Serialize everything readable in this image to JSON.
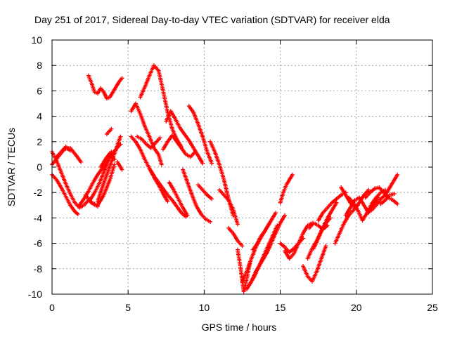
{
  "chart_data": {
    "type": "scatter",
    "title": "Day 251 of 2017, Sidereal Day-to-day VTEC variation (SDTVAR) for receiver elda",
    "xlabel": "GPS time / hours",
    "ylabel": "SDTVAR / TECUs",
    "xlim": [
      0,
      25
    ],
    "ylim": [
      -10,
      10
    ],
    "xticks": [
      0,
      5,
      10,
      15,
      20,
      25
    ],
    "yticks": [
      -10,
      -8,
      -6,
      -4,
      -2,
      0,
      2,
      4,
      6,
      8,
      10
    ],
    "grid": true,
    "marker": "+",
    "color": "#ff0000",
    "tracks": [
      {
        "x": [
          0.0,
          0.3,
          0.6,
          0.9,
          1.2,
          1.5,
          1.8,
          2.1,
          2.4,
          2.7,
          3.0
        ],
        "y": [
          1.2,
          0.5,
          -0.4,
          -1.3,
          -2.1,
          -2.8,
          -3.2,
          -3.0,
          -2.6,
          -2.9,
          -3.1
        ]
      },
      {
        "x": [
          0.0,
          0.4,
          0.8,
          1.2,
          1.6,
          1.9
        ],
        "y": [
          0.2,
          0.8,
          1.4,
          1.5,
          0.9,
          0.4
        ]
      },
      {
        "x": [
          0.0,
          0.3,
          0.6,
          0.9,
          1.2,
          1.5,
          1.7
        ],
        "y": [
          -0.6,
          -1.0,
          -1.6,
          -2.3,
          -3.0,
          -3.5,
          -3.7
        ]
      },
      {
        "x": [
          0.3,
          0.6,
          0.9,
          1.2
        ],
        "y": [
          0.8,
          1.2,
          1.6,
          1.3
        ]
      },
      {
        "x": [
          1.8,
          2.1,
          2.4,
          2.7,
          3.0,
          3.3,
          3.6,
          3.9,
          4.2,
          4.5
        ],
        "y": [
          -3.0,
          -2.5,
          -1.9,
          -1.2,
          -0.6,
          -0.1,
          0.4,
          1.0,
          1.4,
          1.8
        ]
      },
      {
        "x": [
          2.2,
          2.6,
          3.0,
          3.4,
          3.8,
          4.1
        ],
        "y": [
          -2.2,
          -2.8,
          -3.0,
          -2.2,
          -1.0,
          0.2
        ]
      },
      {
        "x": [
          2.5,
          2.8,
          3.1,
          3.4,
          3.7,
          3.9
        ],
        "y": [
          -2.6,
          -2.0,
          -1.3,
          -0.4,
          0.5,
          1.2
        ]
      },
      {
        "x": [
          3.0,
          3.3,
          3.6,
          3.9,
          4.2,
          4.5
        ],
        "y": [
          -2.7,
          -1.6,
          -0.6,
          0.4,
          1.4,
          2.4
        ]
      },
      {
        "x": [
          3.2,
          3.5,
          3.8,
          4.1
        ],
        "y": [
          0.0,
          0.6,
          1.1,
          0.6
        ]
      },
      {
        "x": [
          3.6,
          3.9
        ],
        "y": [
          2.6,
          3.0
        ]
      },
      {
        "x": [
          4.3,
          4.6
        ],
        "y": [
          0.4,
          -0.2
        ]
      },
      {
        "x": [
          2.4,
          2.6,
          2.8,
          3.0,
          3.2,
          3.4,
          3.6,
          3.8,
          4.0,
          4.2,
          4.4,
          4.6
        ],
        "y": [
          7.2,
          6.6,
          5.9,
          5.8,
          6.2,
          5.9,
          5.4,
          5.5,
          5.9,
          6.3,
          6.7,
          7.0
        ]
      },
      {
        "x": [
          5.2,
          5.5,
          5.8,
          6.1,
          6.4,
          6.7,
          7.0,
          7.2
        ],
        "y": [
          4.4,
          5.0,
          4.2,
          3.2,
          2.4,
          1.5,
          1.0,
          0.2
        ]
      },
      {
        "x": [
          5.2,
          5.5,
          5.8,
          6.1,
          6.4,
          6.7,
          7.0,
          7.3,
          7.6
        ],
        "y": [
          2.4,
          2.0,
          1.4,
          0.6,
          -0.1,
          -0.8,
          -1.4,
          -2.1,
          -2.7
        ]
      },
      {
        "x": [
          5.6,
          5.9,
          6.2,
          6.5,
          6.8,
          7.1
        ],
        "y": [
          2.4,
          2.2,
          1.8,
          1.5,
          1.9,
          2.3
        ]
      },
      {
        "x": [
          5.8,
          6.1,
          6.4,
          6.7,
          7.0,
          7.3,
          7.6,
          7.9,
          8.2,
          8.5
        ],
        "y": [
          5.5,
          6.3,
          7.2,
          8.0,
          7.6,
          6.0,
          4.3,
          3.0,
          2.2,
          1.6
        ]
      },
      {
        "x": [
          6.4,
          6.7,
          7.0,
          7.3,
          7.6,
          7.9,
          8.2,
          8.5,
          8.8
        ],
        "y": [
          -0.1,
          -0.7,
          -1.2,
          -1.7,
          -2.2,
          -2.6,
          -3.1,
          -3.6,
          -3.9
        ]
      },
      {
        "x": [
          7.3,
          7.6,
          7.9,
          8.2,
          8.5,
          8.8,
          9.1,
          9.4
        ],
        "y": [
          1.4,
          2.0,
          2.5,
          2.0,
          1.5,
          1.0,
          0.8,
          1.2
        ]
      },
      {
        "x": [
          7.7,
          8.0,
          8.3,
          8.6,
          8.9
        ],
        "y": [
          -1.2,
          -1.8,
          -2.5,
          -3.2,
          -3.8
        ]
      },
      {
        "x": [
          7.5,
          7.8,
          8.1,
          8.4,
          8.7,
          9.0,
          9.3,
          9.6,
          9.9
        ],
        "y": [
          3.6,
          4.4,
          3.8,
          3.1,
          2.6,
          2.1,
          1.5,
          0.9,
          0.3
        ]
      },
      {
        "x": [
          8.6,
          8.9,
          9.2,
          9.5,
          9.8,
          10.1,
          10.4
        ],
        "y": [
          -0.2,
          -1.2,
          -2.2,
          -3.1,
          -3.7,
          -4.1,
          -4.3
        ]
      },
      {
        "x": [
          9.0,
          9.3,
          9.6,
          9.9,
          10.2,
          10.5
        ],
        "y": [
          4.8,
          4.3,
          3.4,
          2.4,
          1.2,
          0.3
        ]
      },
      {
        "x": [
          9.6,
          9.9,
          10.2,
          10.5
        ],
        "y": [
          -1.4,
          -1.8,
          -2.2,
          -2.5
        ]
      },
      {
        "x": [
          10.4,
          10.7,
          11.0,
          11.3,
          11.6,
          11.9
        ],
        "y": [
          2.0,
          1.2,
          0.2,
          -1.0,
          -2.5,
          -3.8
        ]
      },
      {
        "x": [
          11.0,
          11.3,
          11.6,
          11.9,
          12.2
        ],
        "y": [
          -1.8,
          -2.2,
          -2.6,
          -3.3,
          -4.5
        ]
      },
      {
        "x": [
          11.6,
          11.9,
          12.2,
          12.5
        ],
        "y": [
          -4.8,
          -5.2,
          -5.8,
          -6.2
        ]
      },
      {
        "x": [
          12.2,
          12.4,
          12.6,
          12.8,
          13.0
        ],
        "y": [
          -6.5,
          -8.0,
          -9.8,
          -8.8,
          -7.6
        ]
      },
      {
        "x": [
          12.5,
          12.8,
          13.1,
          13.4,
          13.7,
          14.0,
          14.3
        ],
        "y": [
          -9.0,
          -8.2,
          -7.2,
          -6.3,
          -5.5,
          -5.0,
          -4.4
        ]
      },
      {
        "x": [
          12.8,
          13.1,
          13.4,
          13.7,
          14.0,
          14.3
        ],
        "y": [
          -9.6,
          -9.0,
          -8.2,
          -7.6,
          -7.0,
          -6.2
        ]
      },
      {
        "x": [
          13.0,
          13.3,
          13.6,
          13.9,
          14.2,
          14.5,
          14.8
        ],
        "y": [
          -9.2,
          -8.6,
          -7.8,
          -7.0,
          -6.2,
          -5.4,
          -4.6
        ]
      },
      {
        "x": [
          13.2,
          13.5,
          13.8,
          14.1,
          14.4,
          14.7
        ],
        "y": [
          -6.5,
          -6.0,
          -5.4,
          -4.8,
          -4.2,
          -3.6
        ]
      },
      {
        "x": [
          14.1,
          14.4,
          14.7,
          15.0,
          15.3
        ],
        "y": [
          -6.8,
          -6.0,
          -5.2,
          -4.4,
          -3.8
        ]
      },
      {
        "x": [
          15.0,
          15.2,
          15.4,
          15.6,
          15.8
        ],
        "y": [
          -2.8,
          -2.0,
          -1.4,
          -1.0,
          -0.6
        ]
      },
      {
        "x": [
          15.0,
          15.3,
          15.6,
          15.9,
          16.2,
          16.5
        ],
        "y": [
          -6.0,
          -6.3,
          -6.7,
          -6.4,
          -6.0,
          -5.6
        ]
      },
      {
        "x": [
          15.3,
          15.6,
          15.9,
          16.2,
          16.5,
          16.8,
          17.1
        ],
        "y": [
          -6.6,
          -7.2,
          -6.8,
          -6.0,
          -5.2,
          -4.6,
          -4.4
        ]
      },
      {
        "x": [
          16.5,
          16.8,
          17.1,
          17.4,
          17.7,
          18.0
        ],
        "y": [
          -7.8,
          -8.6,
          -9.0,
          -8.2,
          -7.2,
          -6.2
        ]
      },
      {
        "x": [
          16.8,
          17.1,
          17.4,
          17.7,
          18.0,
          18.3
        ],
        "y": [
          -7.2,
          -6.4,
          -5.8,
          -5.0,
          -4.4,
          -4.0
        ]
      },
      {
        "x": [
          16.9,
          17.2,
          17.5,
          17.8,
          18.1
        ],
        "y": [
          -4.8,
          -4.4,
          -4.6,
          -4.9,
          -4.6
        ]
      },
      {
        "x": [
          17.2,
          17.5,
          17.8,
          18.1,
          18.4,
          18.7
        ],
        "y": [
          -6.4,
          -5.6,
          -4.8,
          -4.0,
          -3.4,
          -2.8
        ]
      },
      {
        "x": [
          17.5,
          17.8,
          18.1,
          18.4,
          18.7,
          19.0,
          19.3
        ],
        "y": [
          -4.2,
          -3.6,
          -3.2,
          -2.8,
          -2.5,
          -2.2,
          -2.0
        ]
      },
      {
        "x": [
          18.6,
          18.9,
          19.2,
          19.5,
          19.8,
          20.1
        ],
        "y": [
          -6.0,
          -5.2,
          -4.4,
          -3.8,
          -3.4,
          -3.0
        ]
      },
      {
        "x": [
          19.0,
          19.3,
          19.6,
          19.9,
          20.2,
          20.5,
          20.8
        ],
        "y": [
          -1.6,
          -2.2,
          -2.8,
          -3.2,
          -2.8,
          -2.2,
          -1.8
        ]
      },
      {
        "x": [
          19.3,
          19.6,
          19.9,
          20.2,
          20.5,
          20.8,
          21.1,
          21.4
        ],
        "y": [
          -3.8,
          -3.2,
          -2.6,
          -2.4,
          -3.0,
          -3.6,
          -3.0,
          -2.4
        ]
      },
      {
        "x": [
          19.5,
          19.8,
          20.1,
          20.4,
          20.7,
          21.0,
          21.3,
          21.6,
          21.9
        ],
        "y": [
          -2.4,
          -2.8,
          -3.4,
          -4.2,
          -3.6,
          -2.9,
          -2.4,
          -2.0,
          -1.8
        ]
      },
      {
        "x": [
          20.6,
          20.9,
          21.2,
          21.5,
          21.8,
          22.1,
          22.4,
          22.7
        ],
        "y": [
          -2.4,
          -2.0,
          -1.7,
          -1.6,
          -2.0,
          -2.4,
          -2.6,
          -2.9
        ]
      },
      {
        "x": [
          21.0,
          21.3,
          21.6,
          21.9,
          22.2,
          22.5,
          22.7
        ],
        "y": [
          -3.4,
          -3.0,
          -2.5,
          -2.2,
          -1.6,
          -1.0,
          -0.6
        ]
      },
      {
        "x": [
          21.6,
          21.9,
          22.2,
          22.5
        ],
        "y": [
          -2.9,
          -2.6,
          -2.2,
          -2.1
        ]
      }
    ]
  }
}
